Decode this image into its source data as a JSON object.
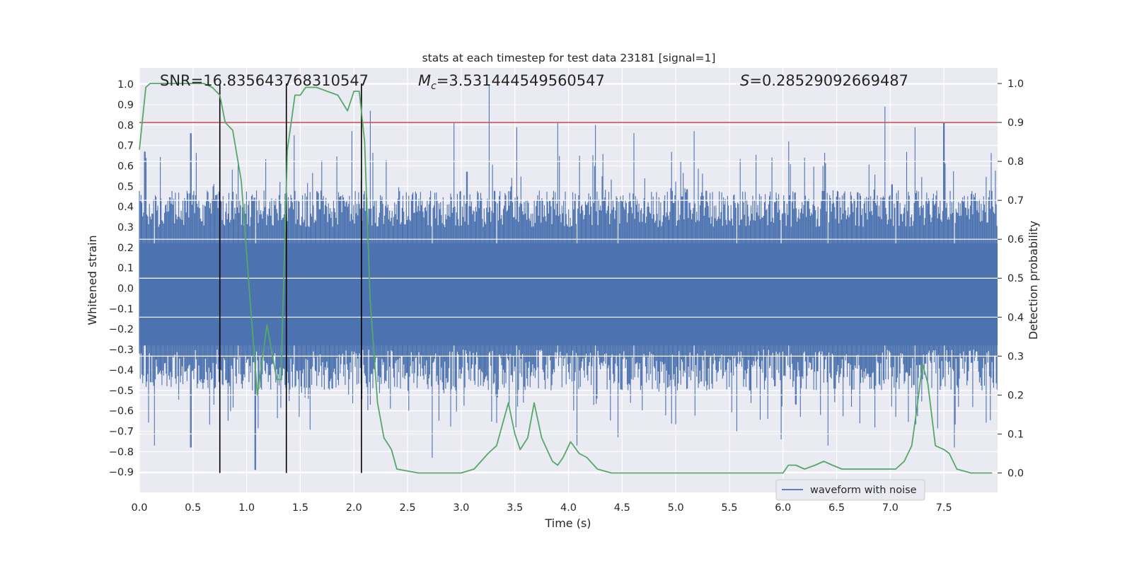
{
  "chart_data": {
    "type": "line",
    "title": "stats at each timestep for test data 23181 [signal=1]",
    "xlabel": "Time (s)",
    "ylabel_left": "Whitened strain",
    "ylabel_right": "Detection probability",
    "xlim": [
      0.0,
      8.0
    ],
    "ylim_left": [
      -1.0,
      1.08
    ],
    "ylim_right": [
      -0.05,
      1.04
    ],
    "x_ticks": [
      "0.0",
      "0.5",
      "1.0",
      "1.5",
      "2.0",
      "2.5",
      "3.0",
      "3.5",
      "4.0",
      "4.5",
      "5.0",
      "5.5",
      "6.0",
      "6.5",
      "7.0",
      "7.5"
    ],
    "y_left_ticks": [
      "1.0",
      "0.9",
      "0.8",
      "0.7",
      "0.6",
      "0.5",
      "0.4",
      "0.3",
      "0.2",
      "0.1",
      "0.0",
      "-0.1",
      "-0.2",
      "-0.3",
      "-0.4",
      "-0.5",
      "-0.6",
      "-0.7",
      "-0.8",
      "-0.9"
    ],
    "y_right_ticks": [
      "1.0",
      "0.9",
      "0.8",
      "0.7",
      "0.6",
      "0.5",
      "0.4",
      "0.3",
      "0.2",
      "0.1",
      "0.0"
    ],
    "grid": true,
    "legend": {
      "position": "bottom-right",
      "entries": [
        "waveform with noise"
      ]
    },
    "annotations": {
      "snr": "SNR=16.835643768310547",
      "mc_symbol": "M",
      "mc_sub": "c",
      "mc_value": "=3.531444549560547",
      "s_symbol": "S",
      "s_value": "=0.28529092669487"
    },
    "threshold": 0.9,
    "marker_lines_x": [
      0.75,
      1.37,
      2.07
    ],
    "series": [
      {
        "name": "waveform with noise",
        "axis": "left",
        "color": "#4c72b0",
        "description": "dense noisy whitened strain, sampled every ~0.0078 s; typical envelope +/-0.45 with spikes to +/-0.9",
        "spike_peaks": [
          [
            0.05,
            0.67
          ],
          [
            0.48,
            0.76
          ],
          [
            0.92,
            0.62
          ],
          [
            1.44,
            0.75
          ],
          [
            1.98,
            0.77
          ],
          [
            2.15,
            0.87
          ],
          [
            2.93,
            0.81
          ],
          [
            3.26,
            1.0
          ],
          [
            3.52,
            0.79
          ],
          [
            3.9,
            0.81
          ],
          [
            4.25,
            0.8
          ],
          [
            4.61,
            0.76
          ],
          [
            5.17,
            0.77
          ],
          [
            6.05,
            0.72
          ],
          [
            6.95,
            0.89
          ],
          [
            7.23,
            0.79
          ],
          [
            7.5,
            0.81
          ]
        ],
        "trough_peaks": [
          [
            0.14,
            -0.77
          ],
          [
            0.48,
            -0.78
          ],
          [
            1.08,
            -0.89
          ],
          [
            2.15,
            -0.57
          ],
          [
            2.73,
            -0.83
          ],
          [
            3.33,
            -0.66
          ],
          [
            4.08,
            -0.77
          ],
          [
            4.46,
            -0.73
          ],
          [
            5.57,
            -0.7
          ],
          [
            5.98,
            -0.74
          ],
          [
            6.42,
            -0.77
          ],
          [
            7.05,
            -0.63
          ],
          [
            7.6,
            -0.78
          ]
        ]
      },
      {
        "name": "detection probability",
        "axis": "right",
        "color": "#55a868",
        "x": [
          0.0,
          0.06,
          0.1,
          0.2,
          0.3,
          0.45,
          0.6,
          0.68,
          0.75,
          0.8,
          0.87,
          0.95,
          1.03,
          1.1,
          1.19,
          1.28,
          1.32,
          1.38,
          1.45,
          1.5,
          1.55,
          1.65,
          1.75,
          1.85,
          1.94,
          2.0,
          2.05,
          2.1,
          2.15,
          2.22,
          2.28,
          2.35,
          2.4,
          2.6,
          2.8,
          3.0,
          3.12,
          3.25,
          3.33,
          3.4,
          3.44,
          3.5,
          3.55,
          3.62,
          3.68,
          3.75,
          3.85,
          3.9,
          3.95,
          4.02,
          4.1,
          4.17,
          4.27,
          4.4,
          4.6,
          4.9,
          5.1,
          5.3,
          5.6,
          5.9,
          6.0,
          6.05,
          6.12,
          6.2,
          6.3,
          6.38,
          6.46,
          6.55,
          6.65,
          6.75,
          6.85,
          6.95,
          7.05,
          7.13,
          7.2,
          7.25,
          7.3,
          7.35,
          7.42,
          7.5,
          7.55,
          7.62,
          7.75,
          7.95
        ],
        "values": [
          0.83,
          0.99,
          1.0,
          1.0,
          1.0,
          1.0,
          1.0,
          0.99,
          0.97,
          0.9,
          0.88,
          0.75,
          0.45,
          0.2,
          0.38,
          0.24,
          0.24,
          0.83,
          0.97,
          0.97,
          0.99,
          0.99,
          0.98,
          0.97,
          0.93,
          0.98,
          0.98,
          0.85,
          0.45,
          0.18,
          0.09,
          0.06,
          0.01,
          0.0,
          0.0,
          0.0,
          0.01,
          0.05,
          0.07,
          0.14,
          0.18,
          0.1,
          0.06,
          0.09,
          0.18,
          0.09,
          0.03,
          0.02,
          0.04,
          0.08,
          0.05,
          0.04,
          0.01,
          0.0,
          0.0,
          0.0,
          0.0,
          0.0,
          0.0,
          0.0,
          0.0,
          0.02,
          0.02,
          0.01,
          0.02,
          0.03,
          0.02,
          0.01,
          0.01,
          0.01,
          0.01,
          0.01,
          0.01,
          0.03,
          0.07,
          0.17,
          0.28,
          0.23,
          0.07,
          0.06,
          0.05,
          0.01,
          0.0,
          0.0
        ]
      }
    ]
  }
}
